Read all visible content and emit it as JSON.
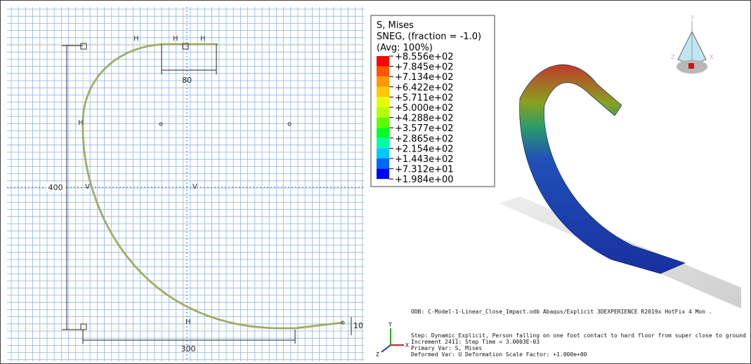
{
  "sketch": {
    "dimensions": [
      "80",
      "400",
      "300",
      "10"
    ],
    "constraints": [
      "H",
      "H",
      "H",
      "H",
      "V",
      "V",
      "H"
    ]
  },
  "legend": {
    "title": "S, Mises",
    "subtitle": "SNEG, (fraction = -1.0)",
    "average": "(Avg: 100%)",
    "labels": [
      "+8.556e+02",
      "+7.845e+02",
      "+7.134e+02",
      "+6.422e+02",
      "+5.711e+02",
      "+5.000e+02",
      "+4.288e+02",
      "+3.577e+02",
      "+2.865e+02",
      "+2.154e+02",
      "+1.443e+02",
      "+7.312e+01",
      "+1.984e+00"
    ],
    "colors": [
      "#ff0000",
      "#ff5500",
      "#ff9900",
      "#ffc800",
      "#e6ff00",
      "#b4ff00",
      "#5cff00",
      "#00ff2a",
      "#00ffaa",
      "#00c8ff",
      "#0066ff",
      "#0000ff"
    ]
  },
  "view_cube": {
    "x": "X",
    "y": "Y",
    "z": "Z"
  },
  "triad": {
    "x": "X",
    "y": "Y",
    "z": "Z"
  },
  "status": {
    "odb": "ODB: C-Model-1-Linear_Close_Impact.odb    Abaqus/Explicit 3DEXPERIENCE R2019x HotFix 4    Mon .",
    "step": "Step: Dynamic_Explicit, Person falling on one foot contact to hard floor from super close to ground",
    "increment": "Increment    2411: Step Time =   3.0003E-03",
    "primary": "Primary Var: S, Mises",
    "deformed": "Deformed Var: U   Deformation Scale Factor: +1.000e+00"
  }
}
